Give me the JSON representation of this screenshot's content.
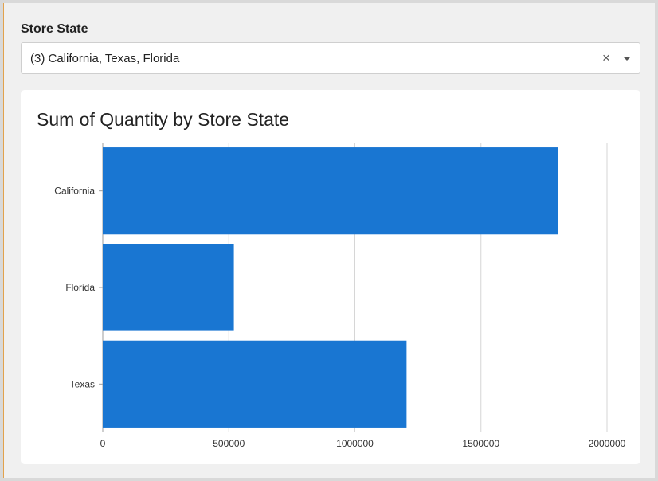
{
  "filter": {
    "label": "Store State",
    "value": "(3) California, Texas, Florida",
    "clear_icon": "×",
    "dropdown_icon": "chevron-down-icon"
  },
  "chart": {
    "title": "Sum of Quantity by Store State"
  },
  "colors": {
    "bar": "#1976d2",
    "grid": "#d6d6d6"
  },
  "chart_data": {
    "type": "bar",
    "orientation": "horizontal",
    "title": "Sum of Quantity by Store State",
    "categories": [
      "California",
      "Florida",
      "Texas"
    ],
    "values": [
      1805000,
      520000,
      1205000
    ],
    "xlabel": "",
    "ylabel": "",
    "xlim": [
      0,
      2000000
    ],
    "xticks": [
      "0",
      "500000",
      "1000000",
      "1500000",
      "2000000"
    ],
    "grid": true
  }
}
